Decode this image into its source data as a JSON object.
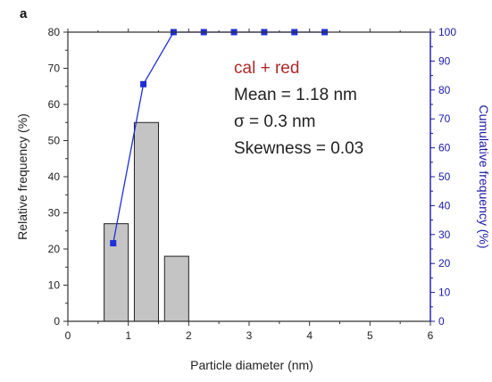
{
  "panel_label": "a",
  "colors": {
    "axis": "#333333",
    "right_axis": "#1a1aa8",
    "bar_fill": "#c4c4c4",
    "bar_stroke": "#222222",
    "cumulative_line": "#1f2fd6",
    "annotation_title": "#b02a2a"
  },
  "annotations": {
    "title": "cal + red",
    "mean": "Mean = 1.18 nm",
    "sigma": "σ =  0.3 nm",
    "skewness": "Skewness = 0.03"
  },
  "chart_data": {
    "type": "bar",
    "xlabel": "Particle diameter (nm)",
    "ylabel": "Relative frequency (%)",
    "y2label": "Cumulative frequency (%)",
    "xlim": [
      0,
      6
    ],
    "ylim": [
      0,
      80
    ],
    "y2lim": [
      0,
      100
    ],
    "x_ticks": [
      0,
      1,
      2,
      3,
      4,
      5,
      6
    ],
    "y_ticks": [
      0,
      10,
      20,
      30,
      40,
      50,
      60,
      70,
      80
    ],
    "y2_ticks": [
      0,
      10,
      20,
      30,
      40,
      50,
      60,
      70,
      80,
      90,
      100
    ],
    "bar_width": 0.4,
    "bars": {
      "x": [
        0.8,
        1.3,
        1.8
      ],
      "values": [
        27,
        55,
        18
      ]
    },
    "cumulative": {
      "axis": "right",
      "x": [
        0.75,
        1.25,
        1.75,
        2.25,
        2.75,
        3.25,
        3.75,
        4.25
      ],
      "values": [
        27,
        82,
        100,
        100,
        100,
        100,
        100,
        100
      ]
    },
    "grid": false
  }
}
